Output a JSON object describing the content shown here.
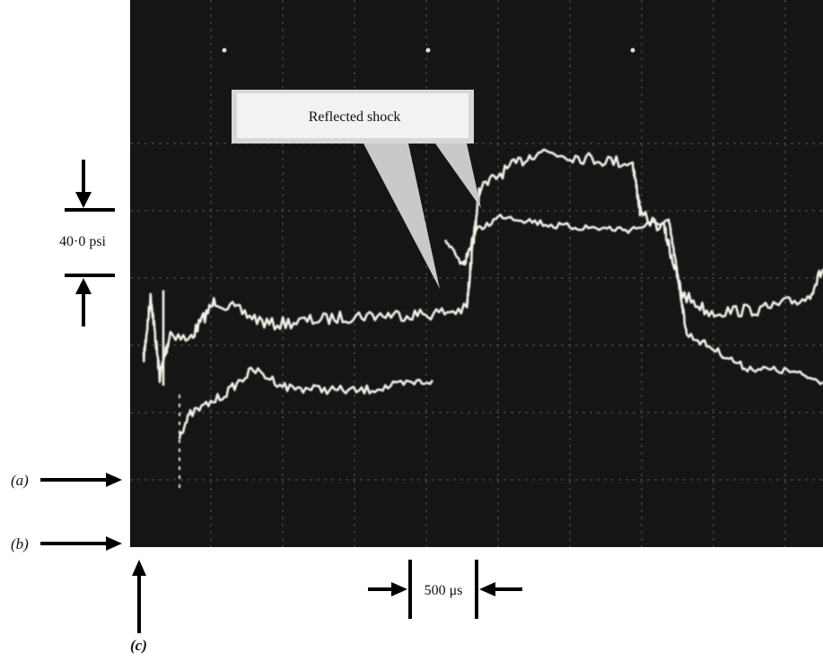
{
  "callout": {
    "label": "Reflected shock"
  },
  "scale": {
    "pressure": "40·0 psi",
    "time": "500 μs"
  },
  "markers": {
    "a": "(a)",
    "b": "(b)",
    "c": "(c)"
  }
}
